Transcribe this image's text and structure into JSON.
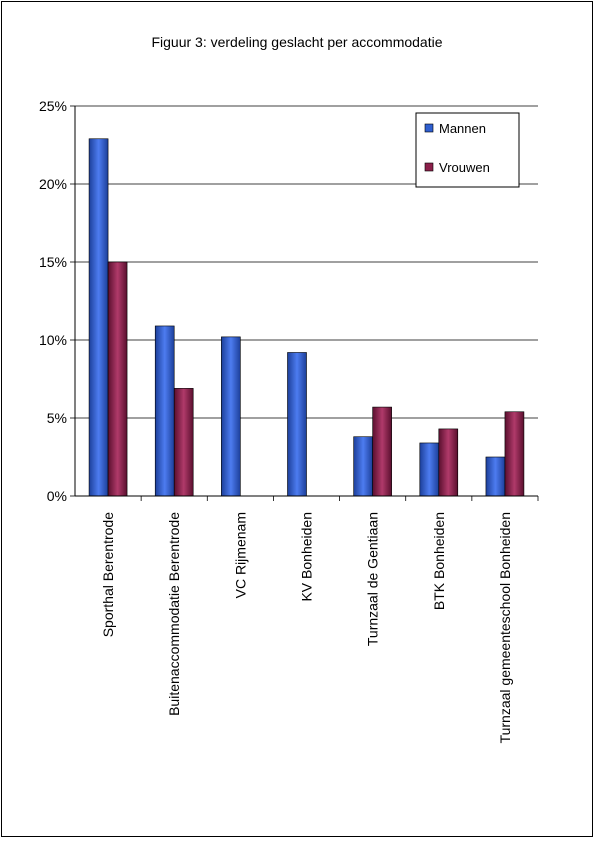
{
  "chart_data": {
    "type": "bar",
    "title": "Figuur 3: verdeling geslacht per accommodatie",
    "xlabel": "",
    "ylabel": "",
    "ylim": [
      0,
      25
    ],
    "yticks": [
      "0%",
      "5%",
      "10%",
      "15%",
      "20%",
      "25%"
    ],
    "yticks_values": [
      0,
      5,
      10,
      15,
      20,
      25
    ],
    "grid": true,
    "legend_position": "top-right",
    "categories": [
      "Sporthal Berentrode",
      "Buitenaccommodatie Berentrode",
      "VC Rijmenam",
      "KV Bonheiden",
      "Turnzaal de Gentiaan",
      "BTK Bonheiden",
      "Turnzaal gemeenteschool Bonheiden"
    ],
    "series": [
      {
        "name": "Mannen",
        "color": "#2f5fd0",
        "values": [
          22.9,
          10.9,
          10.2,
          9.2,
          3.8,
          3.4,
          2.5
        ]
      },
      {
        "name": "Vrouwen",
        "color": "#8b1f4a",
        "values": [
          15.0,
          6.9,
          0,
          0,
          5.7,
          4.3,
          5.4
        ]
      }
    ]
  }
}
